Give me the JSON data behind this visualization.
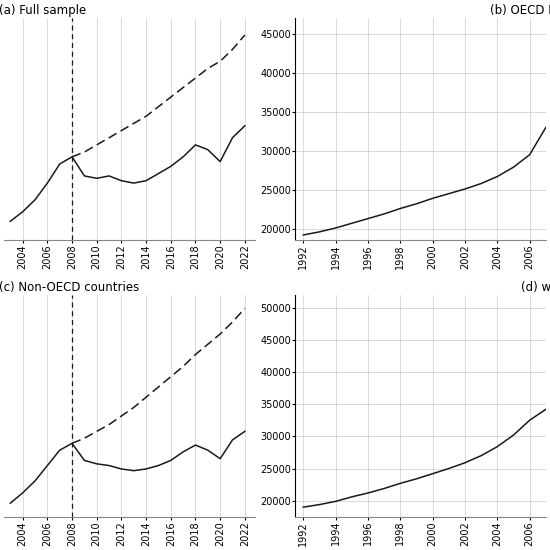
{
  "panel_a": {
    "title": "(a) Full sample",
    "years_actual": [
      2003,
      2004,
      2005,
      2006,
      2007,
      2008,
      2009,
      2010,
      2011,
      2012,
      2013,
      2014,
      2015,
      2016,
      2017,
      2018,
      2019,
      2020,
      2021,
      2022
    ],
    "actual": [
      0.3,
      0.34,
      0.39,
      0.46,
      0.54,
      0.57,
      0.49,
      0.48,
      0.49,
      0.47,
      0.46,
      0.47,
      0.5,
      0.53,
      0.57,
      0.62,
      0.6,
      0.55,
      0.65,
      0.7
    ],
    "cf_years": [
      2008,
      2009,
      2010,
      2011,
      2012,
      2013,
      2014,
      2015,
      2016,
      2017,
      2018,
      2019,
      2020,
      2021,
      2022
    ],
    "counterfactual": [
      0.57,
      0.59,
      0.62,
      0.65,
      0.68,
      0.71,
      0.74,
      0.78,
      0.82,
      0.86,
      0.9,
      0.94,
      0.97,
      1.02,
      1.08
    ],
    "vline_x": 2008,
    "xlim": [
      2002.5,
      2022.8
    ],
    "ylim": [
      0.22,
      1.15
    ]
  },
  "panel_b": {
    "title": "(b) OECD M",
    "years": [
      1992,
      1993,
      1994,
      1995,
      1996,
      1997,
      1998,
      1999,
      2000,
      2001,
      2002,
      2003,
      2004,
      2005,
      2006,
      2007
    ],
    "values": [
      19200,
      19600,
      20100,
      20700,
      21300,
      21900,
      22600,
      23200,
      23900,
      24500,
      25100,
      25800,
      26700,
      27900,
      29500,
      33000
    ],
    "xlim": [
      1991.5,
      2007.0
    ],
    "ylim": [
      18500,
      47000
    ],
    "yticks": [
      20000,
      25000,
      30000,
      35000,
      40000,
      45000
    ]
  },
  "panel_c": {
    "title": "(c) Non-OECD countries",
    "years_actual": [
      2003,
      2004,
      2005,
      2006,
      2007,
      2008,
      2009,
      2010,
      2011,
      2012,
      2013,
      2014,
      2015,
      2016,
      2017,
      2018,
      2019,
      2020,
      2021,
      2022
    ],
    "actual": [
      0.2,
      0.26,
      0.33,
      0.42,
      0.51,
      0.55,
      0.45,
      0.43,
      0.42,
      0.4,
      0.39,
      0.4,
      0.42,
      0.45,
      0.5,
      0.54,
      0.51,
      0.46,
      0.57,
      0.62
    ],
    "cf_years": [
      2008,
      2009,
      2010,
      2011,
      2012,
      2013,
      2014,
      2015,
      2016,
      2017,
      2018,
      2019,
      2020,
      2021,
      2022
    ],
    "counterfactual": [
      0.55,
      0.58,
      0.62,
      0.66,
      0.71,
      0.76,
      0.82,
      0.88,
      0.94,
      1.0,
      1.07,
      1.13,
      1.19,
      1.26,
      1.34
    ],
    "vline_x": 2008,
    "xlim": [
      2002.5,
      2022.8
    ],
    "ylim": [
      0.12,
      1.42
    ]
  },
  "panel_d": {
    "title": "(d) wa",
    "years": [
      1992,
      1993,
      1994,
      1995,
      1996,
      1997,
      1998,
      1999,
      2000,
      2001,
      2002,
      2003,
      2004,
      2005,
      2006,
      2007
    ],
    "values": [
      19000,
      19400,
      19900,
      20600,
      21200,
      21900,
      22700,
      23400,
      24200,
      25000,
      25900,
      27000,
      28400,
      30200,
      32500,
      34200
    ],
    "xlim": [
      1991.5,
      2007.0
    ],
    "ylim": [
      17500,
      52000
    ],
    "yticks": [
      20000,
      25000,
      30000,
      35000,
      40000,
      45000,
      50000
    ]
  },
  "grid_color": "#cccccc",
  "line_color": "#1a1a1a",
  "bg_color": "#ffffff",
  "font_size_title": 8.5,
  "font_size_tick": 7.0
}
